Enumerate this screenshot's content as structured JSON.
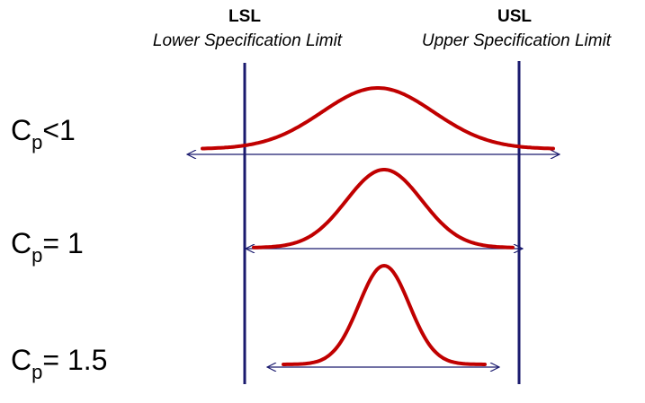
{
  "limits": [
    {
      "abbr": "LSL",
      "name": "Lower Specification Limit"
    },
    {
      "abbr": "USL",
      "name": "Upper Specification Limit"
    }
  ],
  "rows": [
    {
      "symbol": "C",
      "subscript": "p",
      "relation": "<1"
    },
    {
      "symbol": "C",
      "subscript": "p",
      "relation": "= 1"
    },
    {
      "symbol": "C",
      "subscript": "p",
      "relation": "= 1.5"
    }
  ]
}
